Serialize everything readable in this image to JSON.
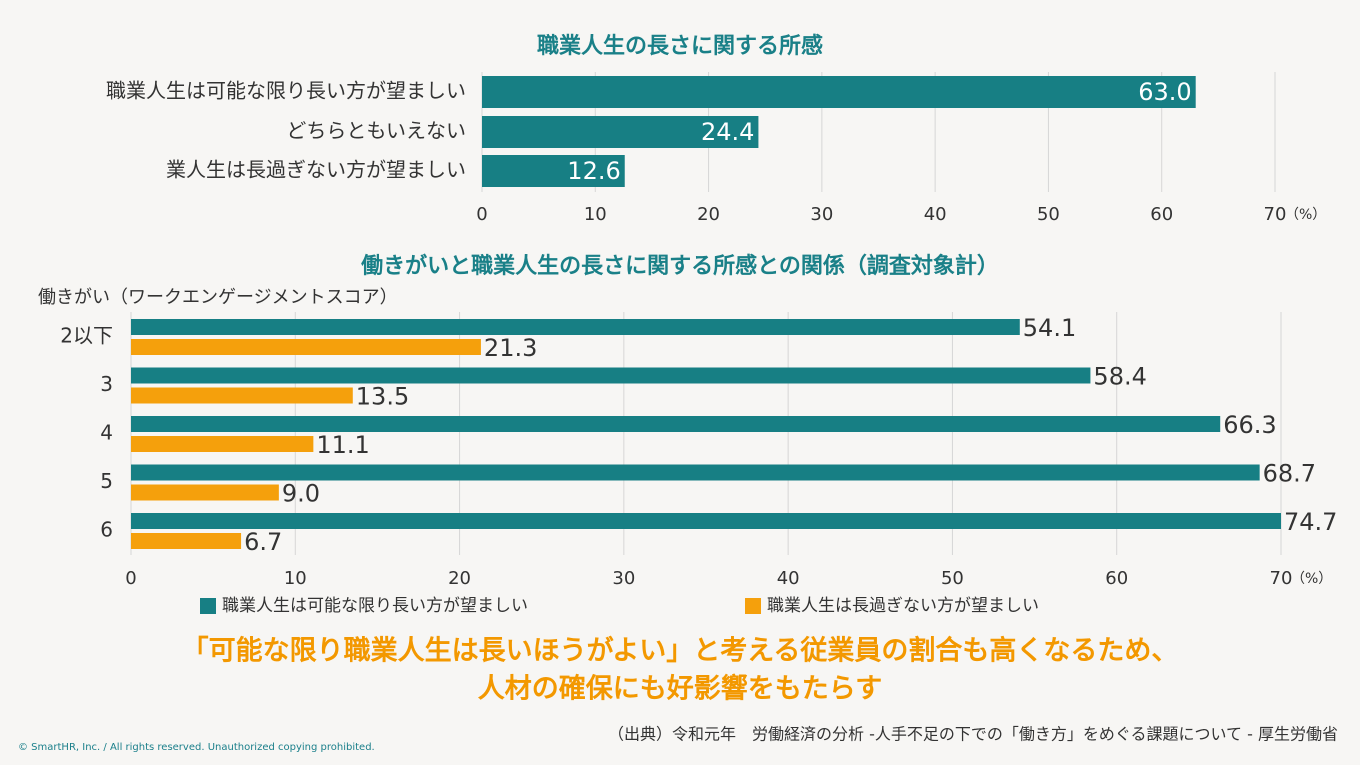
{
  "chart_data": [
    {
      "type": "bar",
      "title": "職業人生の長さに関する所感",
      "categories": [
        "職業人生は可能な限り長い方が望ましい",
        "どちらともいえない",
        "業人生は長過ぎない方が望ましい"
      ],
      "values": [
        63.0,
        24.4,
        12.6
      ],
      "value_labels": [
        "63.0",
        "24.4",
        "12.6"
      ],
      "color": "#177f84",
      "xlim": [
        0,
        70
      ],
      "xticks": [
        0,
        10,
        20,
        30,
        40,
        50,
        60,
        70
      ],
      "x_unit": "（%）",
      "grid": true
    },
    {
      "type": "bar",
      "title": "働きがいと職業人生の長さに関する所感との関係（調査対象計）",
      "y_label": "働きがい（ワークエンゲージメントスコア）",
      "categories": [
        "2以下",
        "3",
        "4",
        "5",
        "6"
      ],
      "series": [
        {
          "name": "職業人生は可能な限り長い方が望ましい",
          "color": "#177f84",
          "values": [
            54.1,
            58.4,
            66.3,
            68.7,
            74.7
          ]
        },
        {
          "name": "職業人生は長過ぎない方が望ましい",
          "color": "#f5a00c",
          "values": [
            21.3,
            13.5,
            11.1,
            9.0,
            6.7
          ],
          "value_labels": [
            "21.3",
            "13.5",
            "11.1",
            "9.0",
            "6.7"
          ]
        }
      ],
      "xlim": [
        0,
        70
      ],
      "xticks": [
        0,
        10,
        20,
        30,
        40,
        50,
        60,
        70
      ],
      "x_unit": "（%）",
      "grid": true
    }
  ],
  "headline": [
    "「可能な限り職業人生は長いほうがよい」と考える従業員の割合も高くなるため、",
    "人材の確保にも好影響をもたらす"
  ],
  "source": "（出典）令和元年　労働経済の分析 -人手不足の下での「働き方」をめぐる課題について - 厚生労働省",
  "copyright": "© SmartHR, Inc. / All rights reserved. Unauthorized copying prohibited."
}
